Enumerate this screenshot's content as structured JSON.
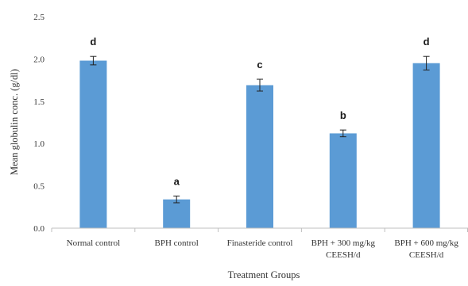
{
  "chart_data": {
    "type": "bar",
    "categories": [
      [
        "Normal control"
      ],
      [
        "BPH control"
      ],
      [
        "Finasteride control"
      ],
      [
        "BPH + 300 mg/kg",
        "CEESH/d"
      ],
      [
        "BPH + 600 mg/kg",
        "CEESH/d"
      ]
    ],
    "values": [
      1.98,
      0.34,
      1.69,
      1.12,
      1.95
    ],
    "errors": [
      0.05,
      0.04,
      0.07,
      0.04,
      0.08
    ],
    "significance_labels": [
      "d",
      "a",
      "c",
      "b",
      "d"
    ],
    "ylabel": "Mean globulin conc. (g/dl)",
    "xlabel": "Treatment Groups",
    "ylim": [
      0,
      2.5
    ],
    "yticks": [
      "0.0",
      "0.5",
      "1.0",
      "1.5",
      "2.0",
      "2.5"
    ],
    "bar_color": "#5B9BD5",
    "grid": false,
    "legend": "none"
  }
}
